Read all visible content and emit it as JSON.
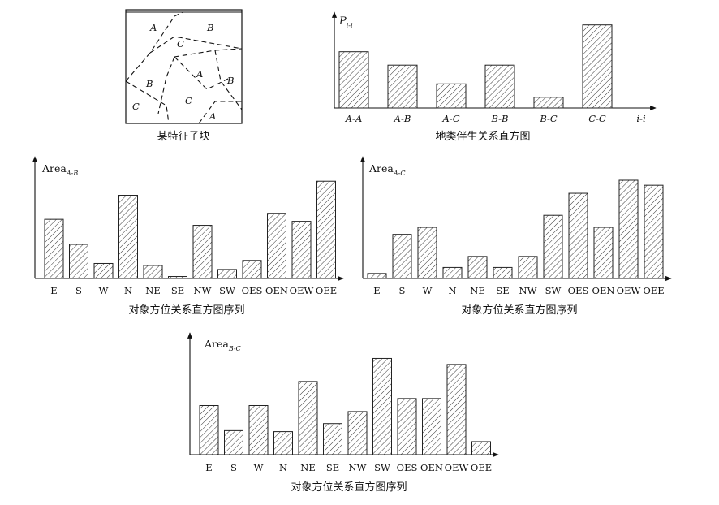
{
  "block_diagram": {
    "caption": "某特征子块",
    "regions": [
      "A",
      "B",
      "C",
      "A",
      "B",
      "B",
      "C",
      "C",
      "A"
    ]
  },
  "chart_data": [
    {
      "id": "cooccurrence",
      "type": "bar",
      "ylabel_main": "P",
      "ylabel_sub": "i-i",
      "xlabel": "i-i",
      "categories": [
        "A-A",
        "A-B",
        "A-C",
        "B-B",
        "B-C",
        "C-C"
      ],
      "values": [
        0.63,
        0.48,
        0.27,
        0.48,
        0.12,
        0.93
      ],
      "ylim": [
        0,
        1
      ],
      "caption": "地类伴生关系直方图"
    },
    {
      "id": "area_ab",
      "type": "bar",
      "ylabel_main": "Area",
      "ylabel_sub": "A-B",
      "categories": [
        "E",
        "S",
        "W",
        "N",
        "NE",
        "SE",
        "NW",
        "SW",
        "OES",
        "OEN",
        "OEW",
        "OEE"
      ],
      "values": [
        0.59,
        0.34,
        0.15,
        0.83,
        0.13,
        0.02,
        0.53,
        0.09,
        0.18,
        0.65,
        0.57,
        0.97
      ],
      "ylim": [
        0,
        1.15
      ],
      "caption": "对象方位关系直方图序列"
    },
    {
      "id": "area_ac",
      "type": "bar",
      "ylabel_main": "Area",
      "ylabel_sub": "A-C",
      "categories": [
        "E",
        "S",
        "W",
        "N",
        "NE",
        "SE",
        "NW",
        "SW",
        "OES",
        "OEN",
        "OEW",
        "OEE"
      ],
      "values": [
        0.05,
        0.44,
        0.51,
        0.11,
        0.22,
        0.11,
        0.22,
        0.63,
        0.85,
        0.51,
        0.98,
        0.93
      ],
      "ylim": [
        0,
        1.15
      ],
      "caption": "对象方位关系直方图序列"
    },
    {
      "id": "area_bc",
      "type": "bar",
      "ylabel_main": "Area",
      "ylabel_sub": "B-C",
      "categories": [
        "E",
        "S",
        "W",
        "N",
        "NE",
        "SE",
        "NW",
        "SW",
        "OES",
        "OEN",
        "OEW",
        "OEE"
      ],
      "values": [
        0.49,
        0.24,
        0.49,
        0.23,
        0.73,
        0.31,
        0.43,
        0.96,
        0.56,
        0.56,
        0.9,
        0.13
      ],
      "ylim": [
        0,
        1.15
      ],
      "caption": "对象方位关系直方图序列"
    }
  ]
}
